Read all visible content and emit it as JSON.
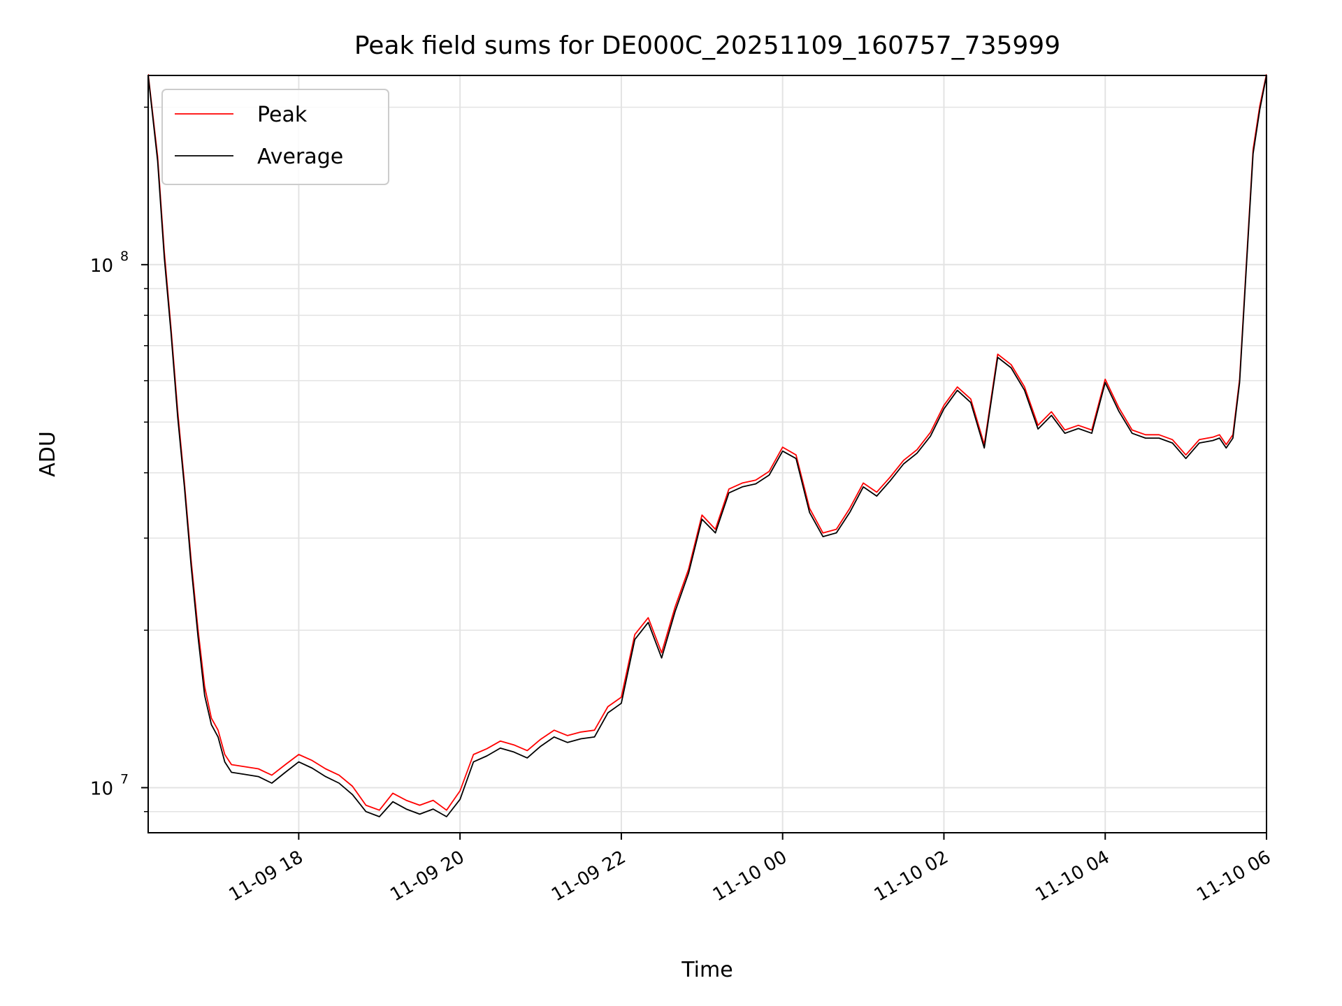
{
  "chart_data": {
    "type": "line",
    "title": "Peak field sums for DE000C_20251109_160757_735999",
    "xlabel": "Time",
    "ylabel": "ADU",
    "yscale": "log",
    "ylim": [
      8200000,
      230000000
    ],
    "xlim": [
      "2025-11-09 16:08",
      "2025-11-10 06:00"
    ],
    "x_ticks": [
      {
        "time": "2025-11-09 18:00",
        "label": "11-09 18"
      },
      {
        "time": "2025-11-09 20:00",
        "label": "11-09 20"
      },
      {
        "time": "2025-11-09 22:00",
        "label": "11-09 22"
      },
      {
        "time": "2025-11-10 00:00",
        "label": "11-10 00"
      },
      {
        "time": "2025-11-10 02:00",
        "label": "11-10 02"
      },
      {
        "time": "2025-11-10 04:00",
        "label": "11-10 04"
      },
      {
        "time": "2025-11-10 06:00",
        "label": "11-10 06"
      }
    ],
    "y_ticks": [
      {
        "value": 10000000,
        "base": "10",
        "exp": "7"
      },
      {
        "value": 100000000,
        "base": "10",
        "exp": "8"
      }
    ],
    "grid": true,
    "legend": "upper-left",
    "x": [
      "2025-11-09 16:08",
      "2025-11-09 16:15",
      "2025-11-09 16:20",
      "2025-11-09 16:25",
      "2025-11-09 16:30",
      "2025-11-09 16:35",
      "2025-11-09 16:40",
      "2025-11-09 16:45",
      "2025-11-09 16:50",
      "2025-11-09 16:55",
      "2025-11-09 17:00",
      "2025-11-09 17:05",
      "2025-11-09 17:10",
      "2025-11-09 17:20",
      "2025-11-09 17:30",
      "2025-11-09 17:40",
      "2025-11-09 17:50",
      "2025-11-09 18:00",
      "2025-11-09 18:10",
      "2025-11-09 18:20",
      "2025-11-09 18:30",
      "2025-11-09 18:40",
      "2025-11-09 18:50",
      "2025-11-09 19:00",
      "2025-11-09 19:10",
      "2025-11-09 19:20",
      "2025-11-09 19:30",
      "2025-11-09 19:40",
      "2025-11-09 19:50",
      "2025-11-09 20:00",
      "2025-11-09 20:10",
      "2025-11-09 20:20",
      "2025-11-09 20:30",
      "2025-11-09 20:40",
      "2025-11-09 20:50",
      "2025-11-09 21:00",
      "2025-11-09 21:10",
      "2025-11-09 21:20",
      "2025-11-09 21:30",
      "2025-11-09 21:40",
      "2025-11-09 21:50",
      "2025-11-09 22:00",
      "2025-11-09 22:10",
      "2025-11-09 22:20",
      "2025-11-09 22:30",
      "2025-11-09 22:40",
      "2025-11-09 22:50",
      "2025-11-09 23:00",
      "2025-11-09 23:10",
      "2025-11-09 23:20",
      "2025-11-09 23:30",
      "2025-11-09 23:40",
      "2025-11-09 23:50",
      "2025-11-10 00:00",
      "2025-11-10 00:10",
      "2025-11-10 00:20",
      "2025-11-10 00:30",
      "2025-11-10 00:40",
      "2025-11-10 00:50",
      "2025-11-10 01:00",
      "2025-11-10 01:10",
      "2025-11-10 01:20",
      "2025-11-10 01:30",
      "2025-11-10 01:40",
      "2025-11-10 01:50",
      "2025-11-10 02:00",
      "2025-11-10 02:10",
      "2025-11-10 02:20",
      "2025-11-10 02:30",
      "2025-11-10 02:40",
      "2025-11-10 02:50",
      "2025-11-10 03:00",
      "2025-11-10 03:10",
      "2025-11-10 03:20",
      "2025-11-10 03:30",
      "2025-11-10 03:40",
      "2025-11-10 03:50",
      "2025-11-10 04:00",
      "2025-11-10 04:10",
      "2025-11-10 04:20",
      "2025-11-10 04:30",
      "2025-11-10 04:40",
      "2025-11-10 04:50",
      "2025-11-10 05:00",
      "2025-11-10 05:10",
      "2025-11-10 05:20",
      "2025-11-10 05:25",
      "2025-11-10 05:30",
      "2025-11-10 05:35",
      "2025-11-10 05:40",
      "2025-11-10 05:45",
      "2025-11-10 05:50",
      "2025-11-10 05:55",
      "2025-11-10 06:00"
    ],
    "series": [
      {
        "name": "Peak",
        "color": "#ff0000",
        "values": [
          230000000,
          160000000,
          105000000,
          75000000,
          52000000,
          38000000,
          27000000,
          20000000,
          15500000,
          13500000,
          12800000,
          11500000,
          11000000,
          10900000,
          10800000,
          10500000,
          11000000,
          11500000,
          11200000,
          10800000,
          10500000,
          10000000,
          9200000,
          9000000,
          9700000,
          9400000,
          9200000,
          9400000,
          9000000,
          9800000,
          11500000,
          11800000,
          12200000,
          12000000,
          11700000,
          12300000,
          12800000,
          12500000,
          12700000,
          12800000,
          14200000,
          14800000,
          19500000,
          21000000,
          18000000,
          22000000,
          26000000,
          33000000,
          31000000,
          37000000,
          38000000,
          38500000,
          40000000,
          44500000,
          43000000,
          34000000,
          30500000,
          31000000,
          34000000,
          38000000,
          36500000,
          39000000,
          42000000,
          44000000,
          47500000,
          53500000,
          58000000,
          55000000,
          45000000,
          67000000,
          64000000,
          58000000,
          49000000,
          52000000,
          48000000,
          49000000,
          48000000,
          60000000,
          53000000,
          48000000,
          47000000,
          47000000,
          46000000,
          43000000,
          46000000,
          46500000,
          47000000,
          45000000,
          47000000,
          60000000,
          100000000,
          165000000,
          200000000,
          230000000
        ]
      },
      {
        "name": "Average",
        "color": "#000000",
        "values": [
          230000000,
          158000000,
          103000000,
          74000000,
          51000000,
          37500000,
          26500000,
          19500000,
          15000000,
          13200000,
          12500000,
          11200000,
          10700000,
          10600000,
          10500000,
          10200000,
          10700000,
          11200000,
          10900000,
          10500000,
          10200000,
          9700000,
          9000000,
          8800000,
          9400000,
          9100000,
          8900000,
          9100000,
          8800000,
          9500000,
          11200000,
          11500000,
          11900000,
          11700000,
          11400000,
          12000000,
          12500000,
          12200000,
          12400000,
          12500000,
          13900000,
          14500000,
          19200000,
          20700000,
          17700000,
          21700000,
          25700000,
          32600000,
          30700000,
          36600000,
          37600000,
          38100000,
          39600000,
          44000000,
          42600000,
          33600000,
          30200000,
          30700000,
          33600000,
          37600000,
          36100000,
          38600000,
          41600000,
          43600000,
          47000000,
          53000000,
          57500000,
          54500000,
          44600000,
          66500000,
          63500000,
          57500000,
          48500000,
          51500000,
          47600000,
          48600000,
          47600000,
          59500000,
          52500000,
          47600000,
          46600000,
          46600000,
          45600000,
          42600000,
          45600000,
          46100000,
          46600000,
          44600000,
          46600000,
          59500000,
          99000000,
          163000000,
          198000000,
          230000000
        ]
      }
    ]
  }
}
